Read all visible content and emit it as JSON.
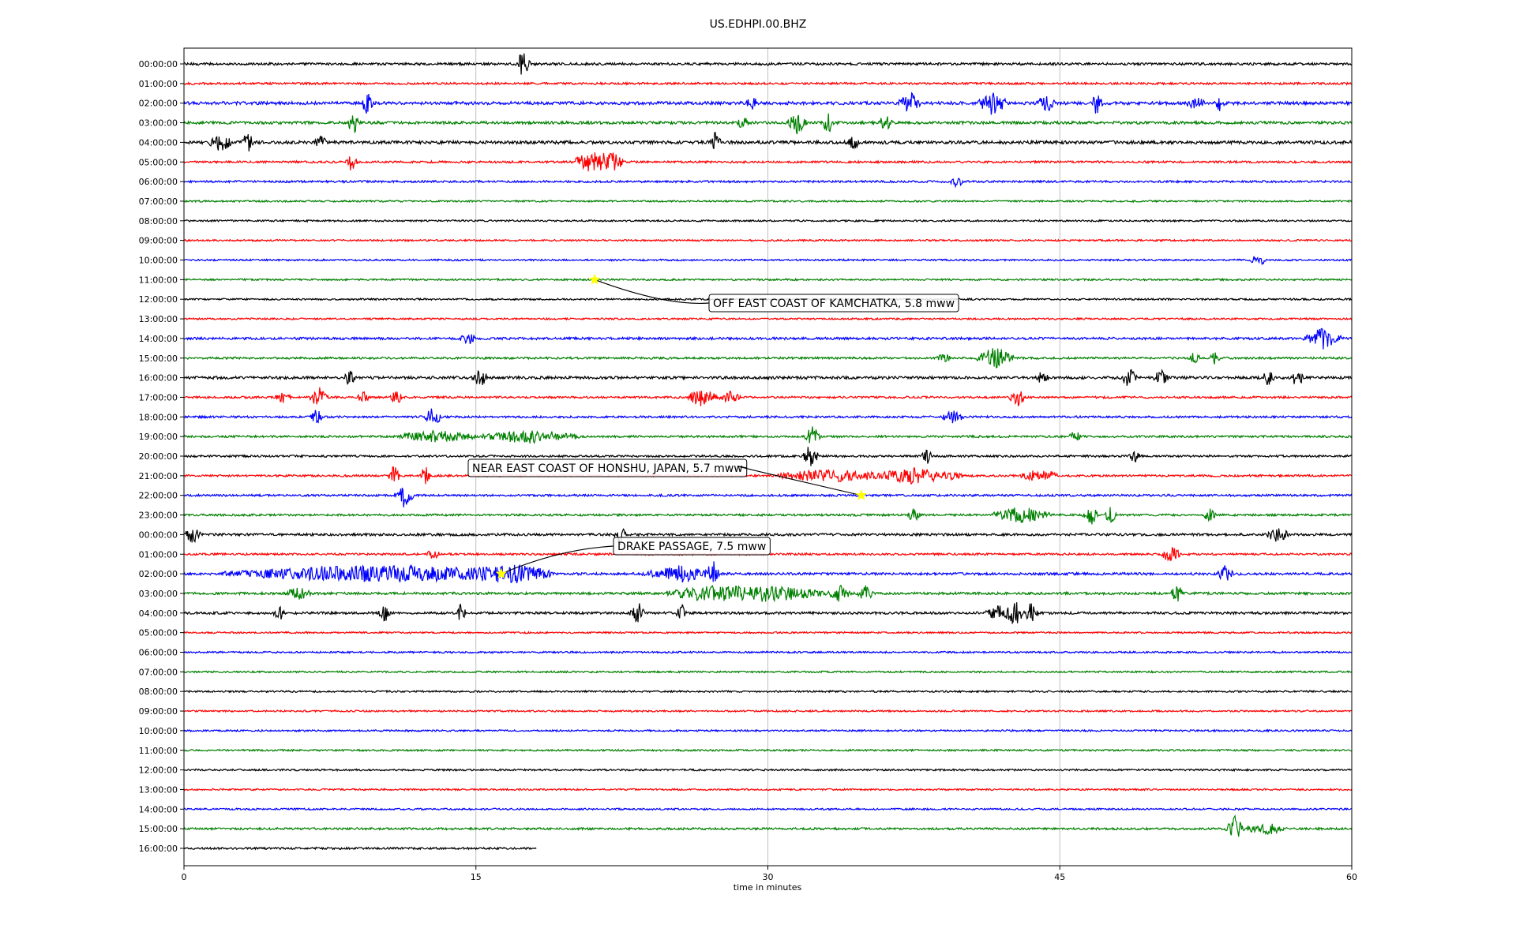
{
  "chart_data": {
    "type": "line",
    "title": "US.EDHPI.00.BHZ",
    "xlabel": "time in minutes",
    "xlim": [
      0,
      60
    ],
    "xticks": [
      0,
      15,
      30,
      45,
      60
    ],
    "grid_x": true,
    "colors": [
      "#000000",
      "#ff0000",
      "#0000ff",
      "#008000"
    ],
    "traces": [
      {
        "label": "00:00:00",
        "noise": 0.7,
        "events": [
          [
            17.4,
            1.0,
            0.4
          ]
        ]
      },
      {
        "label": "01:00:00",
        "noise": 0.6,
        "events": []
      },
      {
        "label": "02:00:00",
        "noise": 0.9,
        "events": [
          [
            9.4,
            0.9,
            0.3
          ],
          [
            29.2,
            0.4,
            0.3
          ],
          [
            37.3,
            0.8,
            0.6
          ],
          [
            41.6,
            1.0,
            0.8
          ],
          [
            44.3,
            0.6,
            0.5
          ],
          [
            46.9,
            0.9,
            0.3
          ],
          [
            52.0,
            0.4,
            0.5
          ],
          [
            53.2,
            0.6,
            0.3
          ]
        ]
      },
      {
        "label": "03:00:00",
        "noise": 0.8,
        "events": [
          [
            8.7,
            1.0,
            0.3
          ],
          [
            28.7,
            0.5,
            0.3
          ],
          [
            31.5,
            0.8,
            0.5
          ],
          [
            33.1,
            0.9,
            0.3
          ],
          [
            36.0,
            0.6,
            0.4
          ]
        ]
      },
      {
        "label": "04:00:00",
        "noise": 0.9,
        "events": [
          [
            1.9,
            0.7,
            0.6
          ],
          [
            3.3,
            1.0,
            0.3
          ],
          [
            7.0,
            0.5,
            0.3
          ],
          [
            27.3,
            0.8,
            0.3
          ],
          [
            34.4,
            0.5,
            0.3
          ]
        ]
      },
      {
        "label": "05:00:00",
        "noise": 0.6,
        "events": [
          [
            8.6,
            0.7,
            0.3
          ],
          [
            20.9,
            0.9,
            1.0
          ],
          [
            22.0,
            0.9,
            0.6
          ]
        ]
      },
      {
        "label": "06:00:00",
        "noise": 0.6,
        "events": [
          [
            39.7,
            0.4,
            0.3
          ]
        ]
      },
      {
        "label": "07:00:00",
        "noise": 0.5,
        "events": []
      },
      {
        "label": "08:00:00",
        "noise": 0.5,
        "events": []
      },
      {
        "label": "09:00:00",
        "noise": 0.5,
        "events": []
      },
      {
        "label": "10:00:00",
        "noise": 0.5,
        "events": [
          [
            55.2,
            0.4,
            0.4
          ]
        ]
      },
      {
        "label": "11:00:00",
        "noise": 0.5,
        "events": []
      },
      {
        "label": "12:00:00",
        "noise": 0.5,
        "events": []
      },
      {
        "label": "13:00:00",
        "noise": 0.5,
        "events": []
      },
      {
        "label": "14:00:00",
        "noise": 0.7,
        "events": [
          [
            14.6,
            0.4,
            0.4
          ],
          [
            58.5,
            0.8,
            1.0
          ]
        ]
      },
      {
        "label": "15:00:00",
        "noise": 0.6,
        "events": [
          [
            39.0,
            0.4,
            0.4
          ],
          [
            41.7,
            0.9,
            1.0
          ],
          [
            51.9,
            0.8,
            0.3
          ],
          [
            53.0,
            0.5,
            0.3
          ]
        ]
      },
      {
        "label": "16:00:00",
        "noise": 0.8,
        "events": [
          [
            8.5,
            0.6,
            0.3
          ],
          [
            15.2,
            0.7,
            0.4
          ],
          [
            44.1,
            0.5,
            0.3
          ],
          [
            48.6,
            0.8,
            0.4
          ],
          [
            50.2,
            0.5,
            0.4
          ],
          [
            55.7,
            0.6,
            0.3
          ],
          [
            57.2,
            0.8,
            0.3
          ]
        ]
      },
      {
        "label": "17:00:00",
        "noise": 0.6,
        "events": [
          [
            5.1,
            0.4,
            0.4
          ],
          [
            6.9,
            0.9,
            0.5
          ],
          [
            9.2,
            0.6,
            0.3
          ],
          [
            10.9,
            0.6,
            0.3
          ],
          [
            26.6,
            0.7,
            0.8
          ],
          [
            28.0,
            0.5,
            0.6
          ],
          [
            42.8,
            0.8,
            0.4
          ]
        ]
      },
      {
        "label": "18:00:00",
        "noise": 0.6,
        "events": [
          [
            6.8,
            0.6,
            0.3
          ],
          [
            12.8,
            0.7,
            0.5
          ],
          [
            39.5,
            0.4,
            0.6
          ]
        ]
      },
      {
        "label": "19:00:00",
        "noise": 0.6,
        "events": [
          [
            13.0,
            0.4,
            2.0
          ],
          [
            17.8,
            0.5,
            2.5
          ],
          [
            32.3,
            0.8,
            0.4
          ],
          [
            45.8,
            0.4,
            0.3
          ]
        ]
      },
      {
        "label": "20:00:00",
        "noise": 0.6,
        "events": [
          [
            32.2,
            1.0,
            0.4
          ],
          [
            38.2,
            0.5,
            0.3
          ],
          [
            48.8,
            0.5,
            0.3
          ]
        ]
      },
      {
        "label": "21:00:00",
        "noise": 0.6,
        "events": [
          [
            10.8,
            0.8,
            0.3
          ],
          [
            12.4,
            0.7,
            0.3
          ],
          [
            33.0,
            0.5,
            2.5
          ],
          [
            37.5,
            0.6,
            2.5
          ],
          [
            44.0,
            0.5,
            1.0
          ]
        ]
      },
      {
        "label": "22:00:00",
        "noise": 0.6,
        "events": [
          [
            11.3,
            1.0,
            0.5
          ]
        ]
      },
      {
        "label": "23:00:00",
        "noise": 0.6,
        "events": [
          [
            37.5,
            0.6,
            0.3
          ],
          [
            43.0,
            0.6,
            1.5
          ],
          [
            46.6,
            0.8,
            0.4
          ],
          [
            47.6,
            0.7,
            0.3
          ],
          [
            52.7,
            0.5,
            0.3
          ]
        ]
      },
      {
        "label": "00:00:00",
        "noise": 0.7,
        "events": [
          [
            0.5,
            0.7,
            0.5
          ],
          [
            22.4,
            0.9,
            0.3
          ],
          [
            56.2,
            0.5,
            0.6
          ]
        ]
      },
      {
        "label": "01:00:00",
        "noise": 0.6,
        "events": [
          [
            12.8,
            0.3,
            0.3
          ],
          [
            50.7,
            0.7,
            0.5
          ]
        ]
      },
      {
        "label": "02:00:00",
        "noise": 0.7,
        "events": [
          [
            7.0,
            0.4,
            5.0
          ],
          [
            13.0,
            0.5,
            6.0
          ],
          [
            17.0,
            0.4,
            2.0
          ],
          [
            25.5,
            0.6,
            2.0
          ],
          [
            27.2,
            0.9,
            0.3
          ],
          [
            53.5,
            0.7,
            0.4
          ]
        ]
      },
      {
        "label": "03:00:00",
        "noise": 0.7,
        "events": [
          [
            5.9,
            0.5,
            0.6
          ],
          [
            26.7,
            0.5,
            2.0
          ],
          [
            30.0,
            0.6,
            3.0
          ],
          [
            33.7,
            0.6,
            0.6
          ],
          [
            35.0,
            0.6,
            0.4
          ],
          [
            51.0,
            0.9,
            0.3
          ]
        ]
      },
      {
        "label": "04:00:00",
        "noise": 0.7,
        "events": [
          [
            4.9,
            0.5,
            0.3
          ],
          [
            10.3,
            0.8,
            0.3
          ],
          [
            14.2,
            0.6,
            0.3
          ],
          [
            23.3,
            0.9,
            0.4
          ],
          [
            25.6,
            0.6,
            0.3
          ],
          [
            41.8,
            0.6,
            0.6
          ],
          [
            42.7,
            1.0,
            0.5
          ],
          [
            43.5,
            0.8,
            0.4
          ]
        ]
      },
      {
        "label": "05:00:00",
        "noise": 0.5,
        "events": []
      },
      {
        "label": "06:00:00",
        "noise": 0.5,
        "events": []
      },
      {
        "label": "07:00:00",
        "noise": 0.5,
        "events": []
      },
      {
        "label": "08:00:00",
        "noise": 0.5,
        "events": []
      },
      {
        "label": "09:00:00",
        "noise": 0.5,
        "events": []
      },
      {
        "label": "10:00:00",
        "noise": 0.5,
        "events": []
      },
      {
        "label": "11:00:00",
        "noise": 0.5,
        "events": []
      },
      {
        "label": "12:00:00",
        "noise": 0.5,
        "events": []
      },
      {
        "label": "13:00:00",
        "noise": 0.5,
        "events": []
      },
      {
        "label": "14:00:00",
        "noise": 0.5,
        "events": []
      },
      {
        "label": "15:00:00",
        "noise": 0.6,
        "events": [
          [
            54.0,
            1.0,
            0.5
          ],
          [
            55.5,
            0.5,
            1.0
          ]
        ]
      },
      {
        "label": "16:00:00",
        "noise": 0.6,
        "end": 18.1,
        "events": []
      }
    ],
    "annotations": [
      {
        "text": "OFF EAST COAST OF KAMCHATKA, 5.8 mww",
        "trace": 11,
        "minute": 21.1
      },
      {
        "text": "NEAR EAST COAST OF HONSHU, JAPAN, 5.7 mww",
        "trace": 22,
        "minute": 34.8
      },
      {
        "text": "DRAKE PASSAGE, 7.5 mww",
        "trace": 26,
        "minute": 16.3
      }
    ]
  }
}
